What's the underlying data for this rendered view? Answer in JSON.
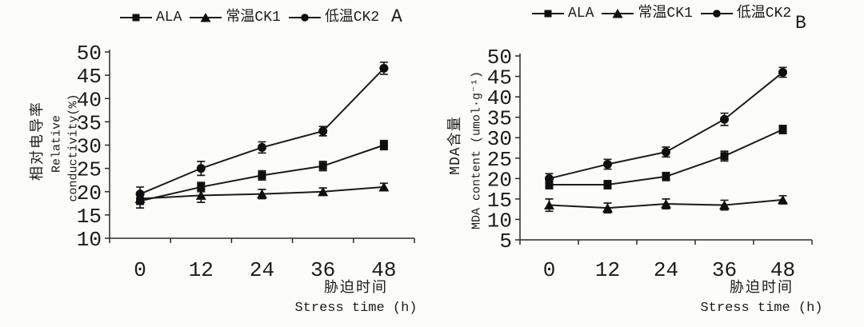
{
  "figure": {
    "description": "Two-panel scanned line chart with error bars",
    "accent_color": "#1b1b1b",
    "background_color": "#fcfcf8"
  },
  "chart_data": [
    {
      "type": "line",
      "panel_label": "A",
      "categories": [
        "0",
        "12",
        "24",
        "36",
        "48"
      ],
      "xlabel_zh": "胁迫时间",
      "xlabel_en": "Stress time (h)",
      "ylabel_zh": "相对电导率",
      "ylabel_en1": "Relative",
      "ylabel_en2": "conductivity(%)",
      "ylim": [
        10,
        50
      ],
      "ytick_step": 5,
      "grid": false,
      "legend_position": "top",
      "line_color": "#1b1b1b",
      "series": [
        {
          "name": "ALA",
          "marker": "square",
          "values": [
            18,
            21,
            23.5,
            25.5,
            30
          ],
          "errors": [
            1.5,
            1.0,
            1.0,
            1.0,
            1.0
          ]
        },
        {
          "name": "常温CK1",
          "marker": "triangle",
          "values": [
            18.5,
            19.2,
            19.5,
            20,
            21
          ],
          "errors": [
            1.2,
            1.5,
            1.0,
            0.8,
            0.8
          ]
        },
        {
          "name": "低温CK2",
          "marker": "circle",
          "values": [
            19.5,
            25,
            29.5,
            33,
            46.5
          ],
          "errors": [
            1.5,
            1.5,
            1.2,
            1.0,
            1.3
          ]
        }
      ]
    },
    {
      "type": "line",
      "panel_label": "B",
      "categories": [
        "0",
        "12",
        "24",
        "36",
        "48"
      ],
      "xlabel_zh": "胁迫时间",
      "xlabel_en": "Stress time (h)",
      "ylabel_zh": "MDA含量",
      "ylabel_en1": "MDA content (umol·g⁻¹)",
      "ylim": [
        5,
        50
      ],
      "ytick_step": 5,
      "grid": false,
      "legend_position": "top",
      "line_color": "#1b1b1b",
      "series": [
        {
          "name": "ALA",
          "marker": "square",
          "values": [
            18.5,
            18.5,
            20.5,
            25.5,
            32
          ],
          "errors": [
            1.0,
            1.0,
            1.0,
            1.2,
            1.0
          ]
        },
        {
          "name": "常温CK1",
          "marker": "triangle",
          "values": [
            13.5,
            12.8,
            13.8,
            13.5,
            14.8
          ],
          "errors": [
            1.5,
            1.2,
            1.2,
            1.2,
            1.0
          ]
        },
        {
          "name": "低温CK2",
          "marker": "circle",
          "values": [
            20,
            23.5,
            26.5,
            34.5,
            46
          ],
          "errors": [
            1.2,
            1.2,
            1.2,
            1.5,
            1.2
          ]
        }
      ]
    }
  ]
}
